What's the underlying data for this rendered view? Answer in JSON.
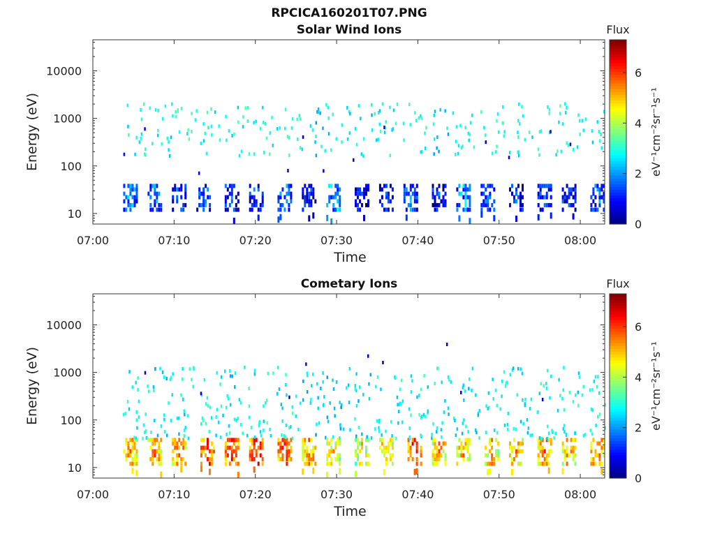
{
  "figure_title": "RPCICA160201T07.PNG",
  "colorbar": {
    "title": "Flux",
    "unit_label": "eV⁻¹cm⁻²sr⁻¹s⁻¹",
    "range": [
      0,
      7.3
    ],
    "ticks": [
      "0",
      "2",
      "4",
      "6"
    ],
    "colormap": "jet"
  },
  "chart_data": [
    {
      "type": "heatmap",
      "title": "Solar Wind Ions",
      "xlabel": "Time",
      "ylabel": "Energy (eV)",
      "x_range": [
        "07:00",
        "08:03"
      ],
      "x_ticks": [
        "07:00",
        "07:10",
        "07:20",
        "07:30",
        "07:40",
        "07:50",
        "08:00"
      ],
      "y_scale": "log",
      "y_range": [
        6,
        45000
      ],
      "y_ticks": [
        "10",
        "100",
        "1000",
        "10000"
      ],
      "bursts": [
        {
          "time": "07:04.5",
          "low_flux": 2.2,
          "high_level": 2.8
        },
        {
          "time": "07:07.5",
          "low_flux": 2.0,
          "high_level": 2.7
        },
        {
          "time": "07:10.5",
          "low_flux": 1.5,
          "high_level": 3.0
        },
        {
          "time": "07:13.5",
          "low_flux": 2.0,
          "high_level": 2.8
        },
        {
          "time": "07:17.0",
          "low_flux": 1.2,
          "high_level": 2.9
        },
        {
          "time": "07:20.0",
          "low_flux": 1.6,
          "high_level": 3.0
        },
        {
          "time": "07:23.5",
          "low_flux": 2.0,
          "high_level": 2.9
        },
        {
          "time": "07:26.5",
          "low_flux": 1.0,
          "high_level": 2.5
        },
        {
          "time": "07:29.5",
          "low_flux": 2.5,
          "high_level": 2.6
        },
        {
          "time": "07:33.0",
          "low_flux": 1.0,
          "high_level": 2.6
        },
        {
          "time": "07:36.0",
          "low_flux": 1.2,
          "high_level": 2.8
        },
        {
          "time": "07:39.0",
          "low_flux": 1.8,
          "high_level": 2.8
        },
        {
          "time": "07:42.5",
          "low_flux": 1.2,
          "high_level": 2.5
        },
        {
          "time": "07:45.5",
          "low_flux": 2.3,
          "high_level": 2.7
        },
        {
          "time": "07:48.5",
          "low_flux": 1.8,
          "high_level": 2.9
        },
        {
          "time": "07:52.0",
          "low_flux": 1.2,
          "high_level": 2.8
        },
        {
          "time": "07:55.5",
          "low_flux": 1.6,
          "high_level": 3.0
        },
        {
          "time": "07:58.5",
          "low_flux": 1.2,
          "high_level": 2.9
        },
        {
          "time": "08:02.0",
          "low_flux": 1.8,
          "high_level": 2.8
        }
      ]
    },
    {
      "type": "heatmap",
      "title": "Cometary Ions",
      "xlabel": "Time",
      "ylabel": "Energy (eV)",
      "x_range": [
        "07:00",
        "08:03"
      ],
      "x_ticks": [
        "07:00",
        "07:10",
        "07:20",
        "07:30",
        "07:40",
        "07:50",
        "08:00"
      ],
      "y_scale": "log",
      "y_range": [
        6,
        45000
      ],
      "y_ticks": [
        "10",
        "100",
        "1000",
        "10000"
      ],
      "bursts": [
        {
          "time": "07:04.5",
          "low_flux": 5.2,
          "high_level": 2.8
        },
        {
          "time": "07:07.5",
          "low_flux": 5.4,
          "high_level": 2.6
        },
        {
          "time": "07:10.5",
          "low_flux": 5.5,
          "high_level": 2.7
        },
        {
          "time": "07:14.0",
          "low_flux": 6.0,
          "high_level": 2.8
        },
        {
          "time": "07:17.0",
          "low_flux": 6.0,
          "high_level": 2.6
        },
        {
          "time": "07:20.0",
          "low_flux": 6.2,
          "high_level": 2.9
        },
        {
          "time": "07:23.5",
          "low_flux": 5.8,
          "high_level": 2.8
        },
        {
          "time": "07:26.5",
          "low_flux": 5.4,
          "high_level": 2.5
        },
        {
          "time": "07:29.5",
          "low_flux": 4.8,
          "high_level": 2.4
        },
        {
          "time": "07:33.0",
          "low_flux": 4.6,
          "high_level": 2.6
        },
        {
          "time": "07:36.0",
          "low_flux": 5.0,
          "high_level": 2.8
        },
        {
          "time": "07:39.5",
          "low_flux": 6.2,
          "high_level": 2.8
        },
        {
          "time": "07:42.5",
          "low_flux": 5.2,
          "high_level": 2.7
        },
        {
          "time": "07:45.5",
          "low_flux": 5.2,
          "high_level": 2.6
        },
        {
          "time": "07:49.0",
          "low_flux": 5.0,
          "high_level": 2.7
        },
        {
          "time": "07:52.0",
          "low_flux": 5.2,
          "high_level": 2.6
        },
        {
          "time": "07:55.5",
          "low_flux": 5.6,
          "high_level": 2.8
        },
        {
          "time": "07:58.5",
          "low_flux": 5.2,
          "high_level": 2.7
        },
        {
          "time": "08:02.0",
          "low_flux": 5.6,
          "high_level": 2.8
        }
      ]
    }
  ]
}
